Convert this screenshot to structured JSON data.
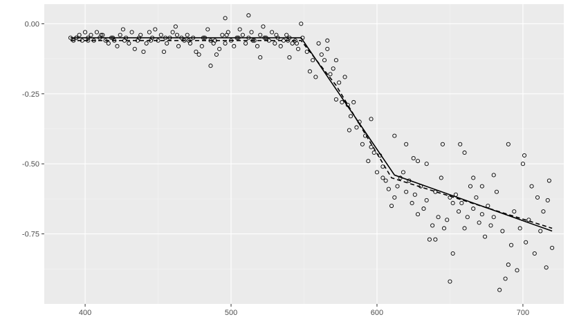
{
  "chart_data": {
    "type": "scatter",
    "title": "",
    "xlabel": "",
    "ylabel": "",
    "xlim": [
      372,
      728
    ],
    "ylim": [
      -1.0,
      0.07
    ],
    "x_ticks": [
      400,
      500,
      600,
      700
    ],
    "x_tick_labels": [
      "400",
      "500",
      "600",
      "700"
    ],
    "y_ticks": [
      0.0,
      -0.25,
      -0.5,
      -0.75
    ],
    "y_tick_labels": [
      "0.00",
      "-0.25",
      "-0.50",
      "-0.75"
    ],
    "grid": true,
    "legend": "none",
    "colors": {
      "panel": "#ebebeb",
      "grid_major": "#ffffff",
      "grid_minor": "#f5f5f5",
      "points": "#000000",
      "lines": "#000000"
    },
    "points": [
      [
        390,
        -0.05
      ],
      [
        392,
        -0.06
      ],
      [
        394,
        -0.05
      ],
      [
        396,
        -0.04
      ],
      [
        398,
        -0.06
      ],
      [
        400,
        -0.03
      ],
      [
        402,
        -0.05
      ],
      [
        404,
        -0.04
      ],
      [
        406,
        -0.06
      ],
      [
        408,
        -0.03
      ],
      [
        410,
        -0.05
      ],
      [
        412,
        -0.04
      ],
      [
        414,
        -0.06
      ],
      [
        416,
        -0.07
      ],
      [
        418,
        -0.05
      ],
      [
        420,
        -0.06
      ],
      [
        422,
        -0.08
      ],
      [
        424,
        -0.04
      ],
      [
        426,
        -0.02
      ],
      [
        428,
        -0.05
      ],
      [
        430,
        -0.07
      ],
      [
        432,
        -0.03
      ],
      [
        434,
        -0.09
      ],
      [
        436,
        -0.06
      ],
      [
        438,
        -0.04
      ],
      [
        440,
        -0.1
      ],
      [
        442,
        -0.07
      ],
      [
        444,
        -0.03
      ],
      [
        446,
        -0.05
      ],
      [
        448,
        -0.02
      ],
      [
        450,
        -0.06
      ],
      [
        452,
        -0.04
      ],
      [
        454,
        -0.1
      ],
      [
        456,
        -0.07
      ],
      [
        458,
        -0.05
      ],
      [
        460,
        -0.03
      ],
      [
        462,
        -0.01
      ],
      [
        464,
        -0.08
      ],
      [
        466,
        -0.05
      ],
      [
        468,
        -0.06
      ],
      [
        470,
        -0.04
      ],
      [
        472,
        -0.07
      ],
      [
        474,
        -0.05
      ],
      [
        476,
        -0.1
      ],
      [
        478,
        -0.11
      ],
      [
        480,
        -0.08
      ],
      [
        482,
        -0.05
      ],
      [
        484,
        -0.02
      ],
      [
        486,
        -0.06
      ],
      [
        488,
        -0.07
      ],
      [
        490,
        -0.11
      ],
      [
        492,
        -0.09
      ],
      [
        494,
        -0.04
      ],
      [
        496,
        -0.07
      ],
      [
        498,
        -0.03
      ],
      [
        500,
        -0.06
      ],
      [
        502,
        -0.08
      ],
      [
        504,
        -0.05
      ],
      [
        506,
        -0.02
      ],
      [
        508,
        -0.04
      ],
      [
        510,
        -0.07
      ],
      [
        512,
        -0.05
      ],
      [
        514,
        -0.03
      ],
      [
        516,
        -0.06
      ],
      [
        518,
        -0.08
      ],
      [
        520,
        -0.04
      ],
      [
        522,
        -0.01
      ],
      [
        524,
        -0.05
      ],
      [
        526,
        -0.06
      ],
      [
        528,
        -0.03
      ],
      [
        530,
        -0.07
      ],
      [
        532,
        -0.05
      ],
      [
        534,
        -0.08
      ],
      [
        536,
        -0.06
      ],
      [
        538,
        -0.04
      ],
      [
        540,
        -0.05
      ],
      [
        542,
        -0.07
      ],
      [
        544,
        -0.06
      ],
      [
        546,
        -0.09
      ],
      [
        394,
        -0.05
      ],
      [
        402,
        -0.06
      ],
      [
        411,
        -0.04
      ],
      [
        419,
        -0.05
      ],
      [
        427,
        -0.06
      ],
      [
        437,
        -0.05
      ],
      [
        445,
        -0.06
      ],
      [
        455,
        -0.05
      ],
      [
        463,
        -0.04
      ],
      [
        471,
        -0.06
      ],
      [
        481,
        -0.05
      ],
      [
        489,
        -0.06
      ],
      [
        497,
        -0.04
      ],
      [
        505,
        -0.05
      ],
      [
        515,
        -0.06
      ],
      [
        523,
        -0.05
      ],
      [
        531,
        -0.04
      ],
      [
        539,
        -0.06
      ],
      [
        486,
        -0.15
      ],
      [
        512,
        0.03
      ],
      [
        496,
        0.02
      ],
      [
        548,
        0.0
      ],
      [
        540,
        -0.12
      ],
      [
        520,
        -0.12
      ],
      [
        545,
        -0.07
      ],
      [
        549,
        -0.05
      ],
      [
        552,
        -0.1
      ],
      [
        554,
        -0.17
      ],
      [
        556,
        -0.13
      ],
      [
        558,
        -0.19
      ],
      [
        560,
        -0.07
      ],
      [
        562,
        -0.11
      ],
      [
        564,
        -0.13
      ],
      [
        566,
        -0.09
      ],
      [
        568,
        -0.18
      ],
      [
        570,
        -0.16
      ],
      [
        572,
        -0.13
      ],
      [
        574,
        -0.21
      ],
      [
        576,
        -0.28
      ],
      [
        578,
        -0.19
      ],
      [
        580,
        -0.29
      ],
      [
        582,
        -0.33
      ],
      [
        584,
        -0.28
      ],
      [
        586,
        -0.37
      ],
      [
        588,
        -0.35
      ],
      [
        590,
        -0.43
      ],
      [
        592,
        -0.4
      ],
      [
        594,
        -0.49
      ],
      [
        596,
        -0.44
      ],
      [
        598,
        -0.46
      ],
      [
        600,
        -0.53
      ],
      [
        602,
        -0.47
      ],
      [
        604,
        -0.55
      ],
      [
        606,
        -0.56
      ],
      [
        608,
        -0.59
      ],
      [
        610,
        -0.65
      ],
      [
        612,
        -0.62
      ],
      [
        614,
        -0.58
      ],
      [
        616,
        -0.55
      ],
      [
        618,
        -0.53
      ],
      [
        620,
        -0.6
      ],
      [
        622,
        -0.56
      ],
      [
        624,
        -0.64
      ],
      [
        626,
        -0.61
      ],
      [
        628,
        -0.68
      ],
      [
        630,
        -0.58
      ],
      [
        632,
        -0.66
      ],
      [
        634,
        -0.63
      ],
      [
        636,
        -0.77
      ],
      [
        638,
        -0.72
      ],
      [
        640,
        -0.6
      ],
      [
        642,
        -0.69
      ],
      [
        644,
        -0.55
      ],
      [
        646,
        -0.73
      ],
      [
        648,
        -0.7
      ],
      [
        650,
        -0.62
      ],
      [
        652,
        -0.82
      ],
      [
        654,
        -0.61
      ],
      [
        656,
        -0.67
      ],
      [
        658,
        -0.64
      ],
      [
        660,
        -0.73
      ],
      [
        662,
        -0.69
      ],
      [
        664,
        -0.58
      ],
      [
        666,
        -0.66
      ],
      [
        668,
        -0.62
      ],
      [
        670,
        -0.71
      ],
      [
        672,
        -0.68
      ],
      [
        674,
        -0.76
      ],
      [
        676,
        -0.65
      ],
      [
        678,
        -0.72
      ],
      [
        680,
        -0.69
      ],
      [
        682,
        -0.6
      ],
      [
        684,
        -0.95
      ],
      [
        686,
        -0.74
      ],
      [
        688,
        -0.91
      ],
      [
        690,
        -0.86
      ],
      [
        692,
        -0.79
      ],
      [
        694,
        -0.67
      ],
      [
        696,
        -0.88
      ],
      [
        698,
        -0.73
      ],
      [
        700,
        -0.5
      ],
      [
        702,
        -0.78
      ],
      [
        704,
        -0.7
      ],
      [
        706,
        -0.58
      ],
      [
        708,
        -0.82
      ],
      [
        710,
        -0.62
      ],
      [
        712,
        -0.74
      ],
      [
        714,
        -0.67
      ],
      [
        716,
        -0.87
      ],
      [
        718,
        -0.56
      ],
      [
        720,
        -0.8
      ],
      [
        566,
        -0.06
      ],
      [
        572,
        -0.27
      ],
      [
        581,
        -0.38
      ],
      [
        596,
        -0.34
      ],
      [
        604,
        -0.51
      ],
      [
        612,
        -0.4
      ],
      [
        620,
        -0.43
      ],
      [
        628,
        -0.49
      ],
      [
        645,
        -0.43
      ],
      [
        650,
        -0.92
      ],
      [
        652,
        -0.64
      ],
      [
        657,
        -0.43
      ],
      [
        660,
        -0.46
      ],
      [
        666,
        -0.55
      ],
      [
        680,
        -0.54
      ],
      [
        690,
        -0.43
      ],
      [
        701,
        -0.47
      ],
      [
        717,
        -0.63
      ],
      [
        672,
        -0.58
      ],
      [
        640,
        -0.77
      ],
      [
        634,
        -0.5
      ],
      [
        625,
        -0.48
      ]
    ],
    "series": [
      {
        "style": "solid",
        "x": [
          390,
          548,
          612,
          720
        ],
        "y": [
          -0.05,
          -0.05,
          -0.54,
          -0.74
        ]
      },
      {
        "style": "dashed",
        "x": [
          390,
          548,
          572,
          610,
          720
        ],
        "y": [
          -0.06,
          -0.06,
          -0.22,
          -0.55,
          -0.73
        ]
      }
    ]
  }
}
